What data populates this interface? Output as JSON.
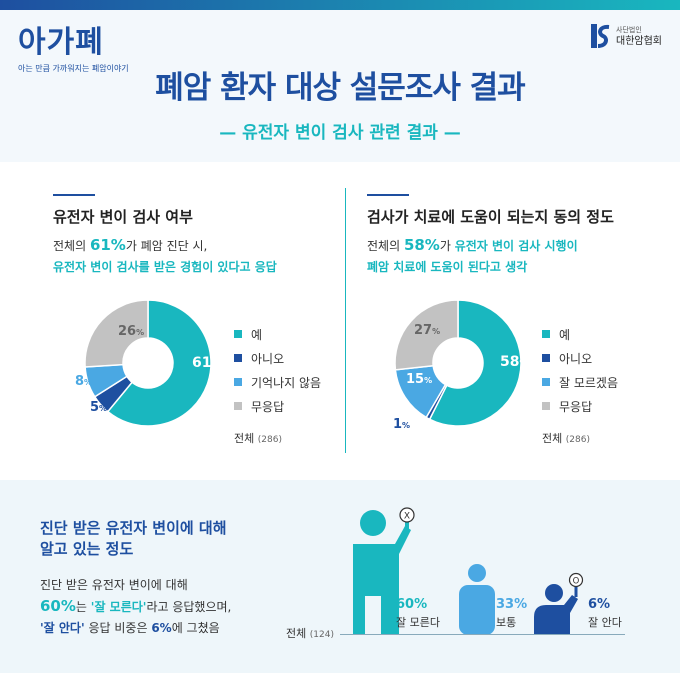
{
  "header": {
    "logo": "아가폐",
    "logo_sub": "아는 만큼 가까워지는 폐암이야기",
    "org_small": "사단법인",
    "org_name": "대한암협회",
    "title": "폐암 환자 대상 설문조사 결과",
    "subtitle": "— 유전자 변이 검사 관련 결과 —"
  },
  "colors": {
    "teal": "#19b7bf",
    "navy": "#1e4fa0",
    "lightblue": "#4aa8e3",
    "gray": "#c2c2c2"
  },
  "chart_data": [
    {
      "type": "pie",
      "title": "유전자 변이 검사 여부",
      "desc": {
        "p1": "전체의 ",
        "pct": "61%",
        "p2": "가 폐암 진단 시,",
        "line2": "유전자 변이 검사를 받은 경험이 있다고 응답"
      },
      "categories": [
        "예",
        "아니오",
        "기억나지 않음",
        "무응답"
      ],
      "values": [
        61,
        5,
        8,
        26
      ],
      "labels": [
        "61",
        "5",
        "8",
        "26"
      ],
      "unit": "%",
      "colors": [
        "#19b7bf",
        "#1e4fa0",
        "#4aa8e3",
        "#c2c2c2"
      ],
      "total_label": "전체",
      "total_n": "(286)"
    },
    {
      "type": "pie",
      "title": "검사가 치료에 도움이 되는지 동의 정도",
      "desc": {
        "p1": "전체의 ",
        "pct": "58%",
        "p2": "가 ",
        "p3": "유전자 변이 검사 시행이",
        "line2": "폐암 치료에 도움이 된다고 생각"
      },
      "categories": [
        "예",
        "아니오",
        "잘 모르겠음",
        "무응답"
      ],
      "values": [
        58,
        1,
        15,
        27
      ],
      "labels": [
        "58",
        "1",
        "15",
        "27"
      ],
      "unit": "%",
      "colors": [
        "#19b7bf",
        "#1e4fa0",
        "#4aa8e3",
        "#c2c2c2"
      ],
      "total_label": "전체",
      "total_n": "(286)"
    },
    {
      "type": "bar",
      "title": "진단 받은 유전자 변이에 대해 알고 있는 정도",
      "categories": [
        "잘 모른다",
        "보통",
        "잘 안다"
      ],
      "values": [
        60,
        33,
        6
      ],
      "labels": [
        "60%",
        "33%",
        "6%"
      ],
      "colors": [
        "#19b7bf",
        "#4aa8e3",
        "#1e4fa0"
      ],
      "total_label": "전체",
      "total_n": "(124)"
    }
  ],
  "bottom": {
    "heading1": "진단 받은 유전자 변이에 대해",
    "heading2": "알고 있는 정도",
    "d1": "진단 받은 유전자 변이에 대해",
    "d2_pct": "60%",
    "d2_a": "는 ",
    "d2_b": "'잘 모른다'",
    "d2_c": "라고 응답했으며,",
    "d3_a": "'잘 안다'",
    "d3_b": " 응답 비중은 ",
    "d3_pct": "6%",
    "d3_c": "에 그쳤음",
    "sign_x": "X",
    "sign_o": "O"
  }
}
